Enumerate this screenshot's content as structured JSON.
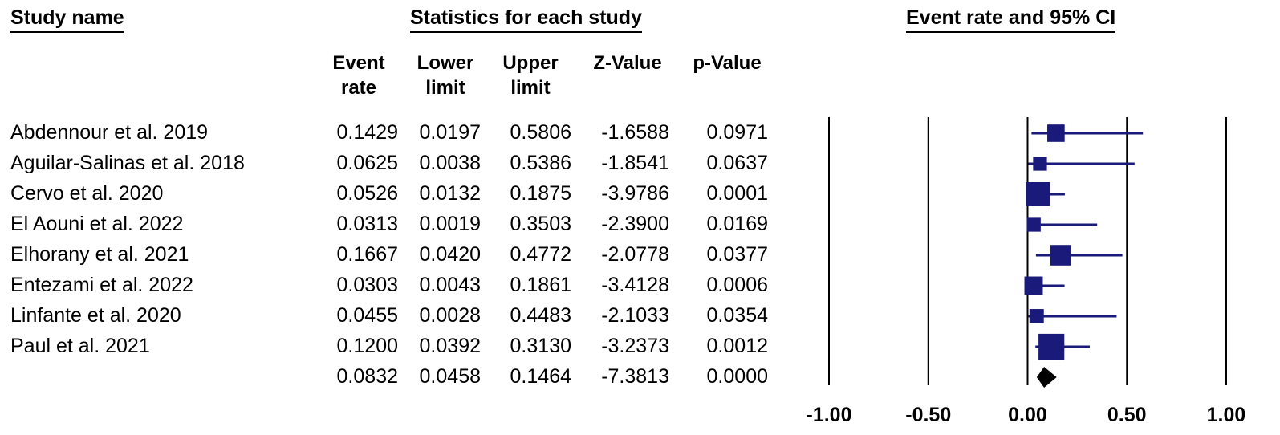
{
  "headers": {
    "study_name": "Study name",
    "statistics": "Statistics for each study",
    "plot": "Event rate and 95% CI"
  },
  "columns": [
    {
      "line1": "Event",
      "line2": "rate"
    },
    {
      "line1": "Lower",
      "line2": "limit"
    },
    {
      "line1": "Upper",
      "line2": "limit"
    },
    {
      "line1": "",
      "line2": "Z-Value"
    },
    {
      "line1": "",
      "line2": "p-Value"
    }
  ],
  "rows": [
    {
      "name": "Abdennour et al. 2019",
      "rate": "0.1429",
      "lower": "0.0197",
      "upper": "0.5806",
      "z": "-1.6588",
      "p": "0.0971"
    },
    {
      "name": "Aguilar-Salinas et al. 2018",
      "rate": "0.0625",
      "lower": "0.0038",
      "upper": "0.5386",
      "z": "-1.8541",
      "p": "0.0637"
    },
    {
      "name": "Cervo et al. 2020",
      "rate": "0.0526",
      "lower": "0.0132",
      "upper": "0.1875",
      "z": "-3.9786",
      "p": "0.0001"
    },
    {
      "name": "El Aouni et al. 2022",
      "rate": "0.0313",
      "lower": "0.0019",
      "upper": "0.3503",
      "z": "-2.3900",
      "p": "0.0169"
    },
    {
      "name": "Elhorany et al. 2021",
      "rate": "0.1667",
      "lower": "0.0420",
      "upper": "0.4772",
      "z": "-2.0778",
      "p": "0.0377"
    },
    {
      "name": "Entezami et al. 2022",
      "rate": "0.0303",
      "lower": "0.0043",
      "upper": "0.1861",
      "z": "-3.4128",
      "p": "0.0006"
    },
    {
      "name": "Linfante et al. 2020",
      "rate": "0.0455",
      "lower": "0.0028",
      "upper": "0.4483",
      "z": "-2.1033",
      "p": "0.0354"
    },
    {
      "name": "Paul et al. 2021",
      "rate": "0.1200",
      "lower": "0.0392",
      "upper": "0.3130",
      "z": "-3.2373",
      "p": "0.0012"
    },
    {
      "name": "",
      "rate": "0.0832",
      "lower": "0.0458",
      "upper": "0.1464",
      "z": "-7.3813",
      "p": "0.0000"
    }
  ],
  "chart_data": {
    "type": "forest",
    "xlim": [
      -1.0,
      1.0
    ],
    "x_ticks": [
      "-1.00",
      "-0.50",
      "0.00",
      "0.50",
      "1.00"
    ],
    "marker_color": "#1a1a7a",
    "summary_color": "#000000",
    "studies": [
      {
        "name": "Abdennour et al. 2019",
        "estimate": 0.1429,
        "lower": 0.0197,
        "upper": 0.5806,
        "weight": 0.62
      },
      {
        "name": "Aguilar-Salinas et al. 2018",
        "estimate": 0.0625,
        "lower": 0.0038,
        "upper": 0.5386,
        "weight": 0.42
      },
      {
        "name": "Cervo et al. 2020",
        "estimate": 0.0526,
        "lower": 0.0132,
        "upper": 0.1875,
        "weight": 1.0
      },
      {
        "name": "El Aouni et al. 2022",
        "estimate": 0.0313,
        "lower": 0.0019,
        "upper": 0.3503,
        "weight": 0.42
      },
      {
        "name": "Elhorany et al. 2021",
        "estimate": 0.1667,
        "lower": 0.042,
        "upper": 0.4772,
        "weight": 0.8
      },
      {
        "name": "Entezami et al. 2022",
        "estimate": 0.0303,
        "lower": 0.0043,
        "upper": 0.1861,
        "weight": 0.68
      },
      {
        "name": "Linfante et al. 2020",
        "estimate": 0.0455,
        "lower": 0.0028,
        "upper": 0.4483,
        "weight": 0.45
      },
      {
        "name": "Paul et al. 2021",
        "estimate": 0.12,
        "lower": 0.0392,
        "upper": 0.313,
        "weight": 1.1
      }
    ],
    "summary": {
      "estimate": 0.0832,
      "lower": 0.0458,
      "upper": 0.1464
    }
  }
}
